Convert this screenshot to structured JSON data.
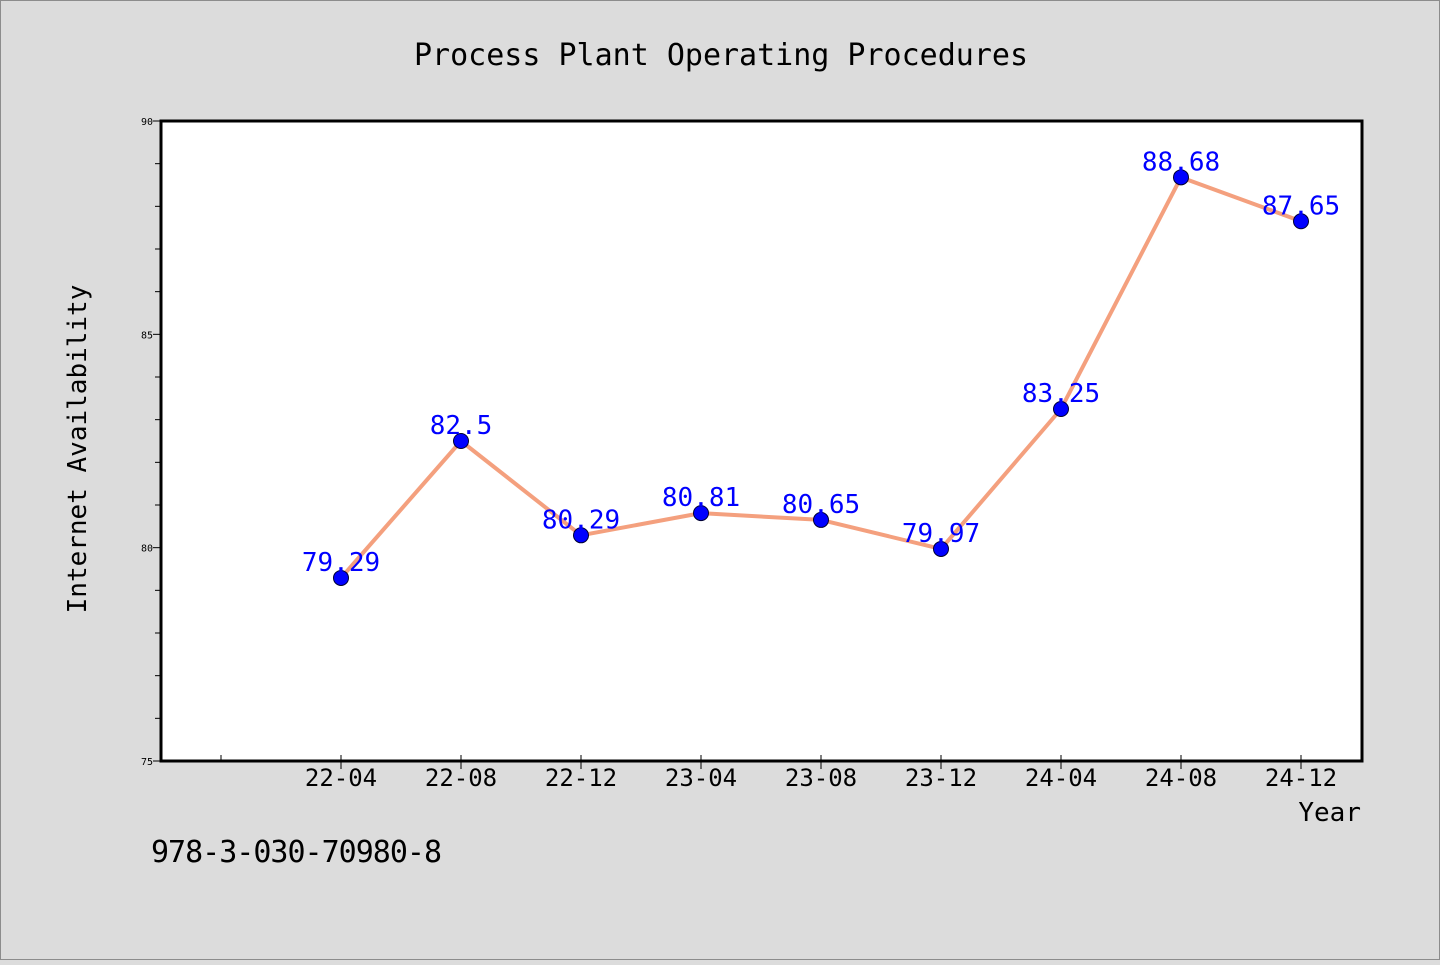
{
  "chart_data": {
    "type": "line",
    "title": "Process Plant Operating Procedures",
    "xlabel": "Year",
    "ylabel": "Internet Availability",
    "categories": [
      "22-04",
      "22-08",
      "22-12",
      "23-04",
      "23-08",
      "23-12",
      "24-04",
      "24-08",
      "24-12"
    ],
    "series": [
      {
        "values": [
          79.29,
          82.5,
          80.29,
          80.81,
          80.65,
          79.97,
          83.25,
          88.68,
          87.65
        ],
        "data_labels": [
          "79.29",
          "82.5",
          "80.29",
          "80.81",
          "80.65",
          "79.97",
          "83.25",
          "88.68",
          "87.65"
        ]
      }
    ],
    "ylim": [
      75,
      90
    ],
    "y_ticks": [
      75,
      80,
      85,
      90
    ],
    "y_tick_labels": [
      "75",
      "80",
      "85",
      "90"
    ],
    "grid": false,
    "colors": {
      "line": "#f4a07e",
      "marker": "#0000ff",
      "data_label": "#0000ff",
      "plot_background": "#ffffff",
      "figure_background": "#dcdcdc"
    }
  },
  "footer": {
    "isbn": "978-3-030-70980-8"
  }
}
